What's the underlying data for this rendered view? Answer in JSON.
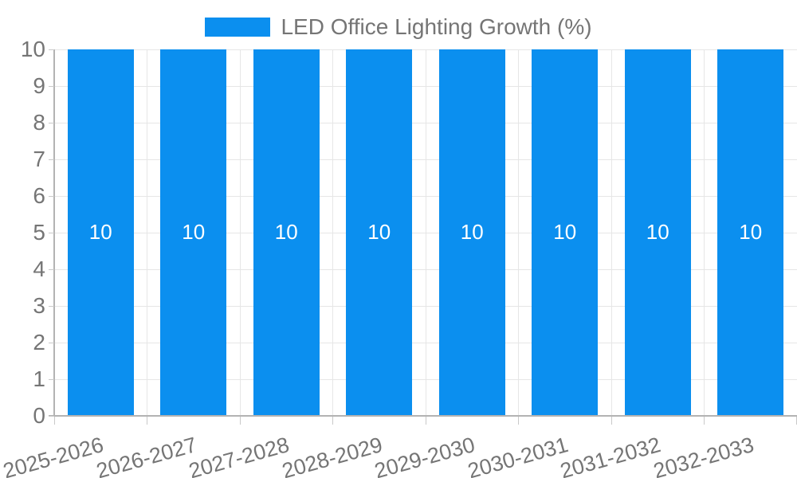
{
  "chart_data": {
    "type": "bar",
    "title": "LED Office Lighting Growth (%)",
    "categories": [
      "2025-2026",
      "2026-2027",
      "2027-2028",
      "2028-2029",
      "2029-2030",
      "2030-2031",
      "2031-2032",
      "2032-2033"
    ],
    "values": [
      10,
      10,
      10,
      10,
      10,
      10,
      10,
      10
    ],
    "bar_labels": [
      "10",
      "10",
      "10",
      "10",
      "10",
      "10",
      "10",
      "10"
    ],
    "xlabel": "",
    "ylabel": "",
    "ylim": [
      0,
      10
    ],
    "y_ticks": [
      0,
      1,
      2,
      3,
      4,
      5,
      6,
      7,
      8,
      9,
      10
    ],
    "grid": true,
    "legend_position": "top-center",
    "colors": {
      "bar": "#0b8fef",
      "grid": "#e6e6e6",
      "axis": "#b3b3b3",
      "tick": "#c9c9c9",
      "text": "#757575",
      "value_label": "#ffffff",
      "background": "#ffffff"
    }
  }
}
